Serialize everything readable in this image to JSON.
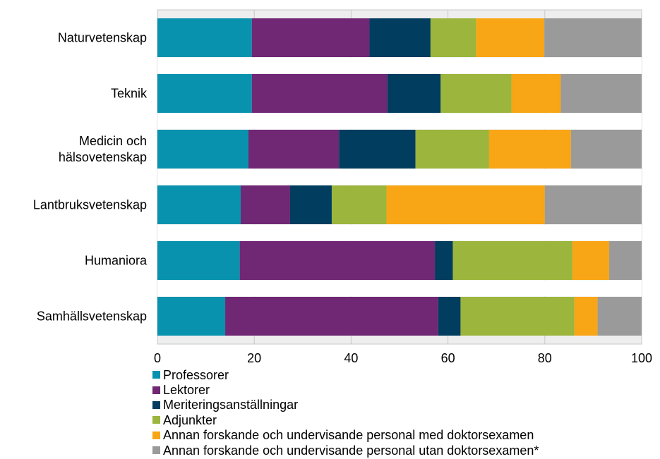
{
  "chart_data": {
    "type": "bar",
    "orientation": "horizontal",
    "stacked": true,
    "categories": [
      [
        "Naturvetenskap"
      ],
      [
        "Teknik"
      ],
      [
        "Medicin och",
        "hälsovetenskap"
      ],
      [
        "Lantbruksvetenskap"
      ],
      [
        "Humaniora"
      ],
      [
        "Samhällsvetenskap"
      ]
    ],
    "series": [
      {
        "name": "Professorer",
        "color": "#0892AE",
        "values": [
          19.5,
          19.5,
          18.8,
          17.2,
          17.0,
          14.0
        ]
      },
      {
        "name": "Lektorer",
        "color": "#702774",
        "values": [
          24.3,
          28.0,
          18.7,
          10.2,
          40.3,
          44.0
        ]
      },
      {
        "name": "Meriteringsanställningar",
        "color": "#003D5E",
        "values": [
          12.6,
          11.0,
          15.8,
          8.6,
          3.7,
          4.6
        ]
      },
      {
        "name": "Adjunkter",
        "color": "#9BB53D",
        "values": [
          9.4,
          14.6,
          15.2,
          11.3,
          24.7,
          23.5
        ]
      },
      {
        "name": "Annan forskande och undervisande personal med doktorsexamen",
        "color": "#F8A516",
        "values": [
          14.1,
          10.2,
          16.9,
          32.7,
          7.6,
          4.8
        ]
      },
      {
        "name": "Annan forskande och undervisande personal utan doktorsexamen*",
        "color": "#9A9A9A",
        "values": [
          20.1,
          16.7,
          14.6,
          20.0,
          6.7,
          9.1
        ]
      }
    ],
    "x_ticks": [
      "0",
      "20",
      "40",
      "60",
      "80",
      "100"
    ],
    "xlim": [
      0,
      100
    ],
    "grid": true,
    "legend_position": "bottom-left"
  }
}
